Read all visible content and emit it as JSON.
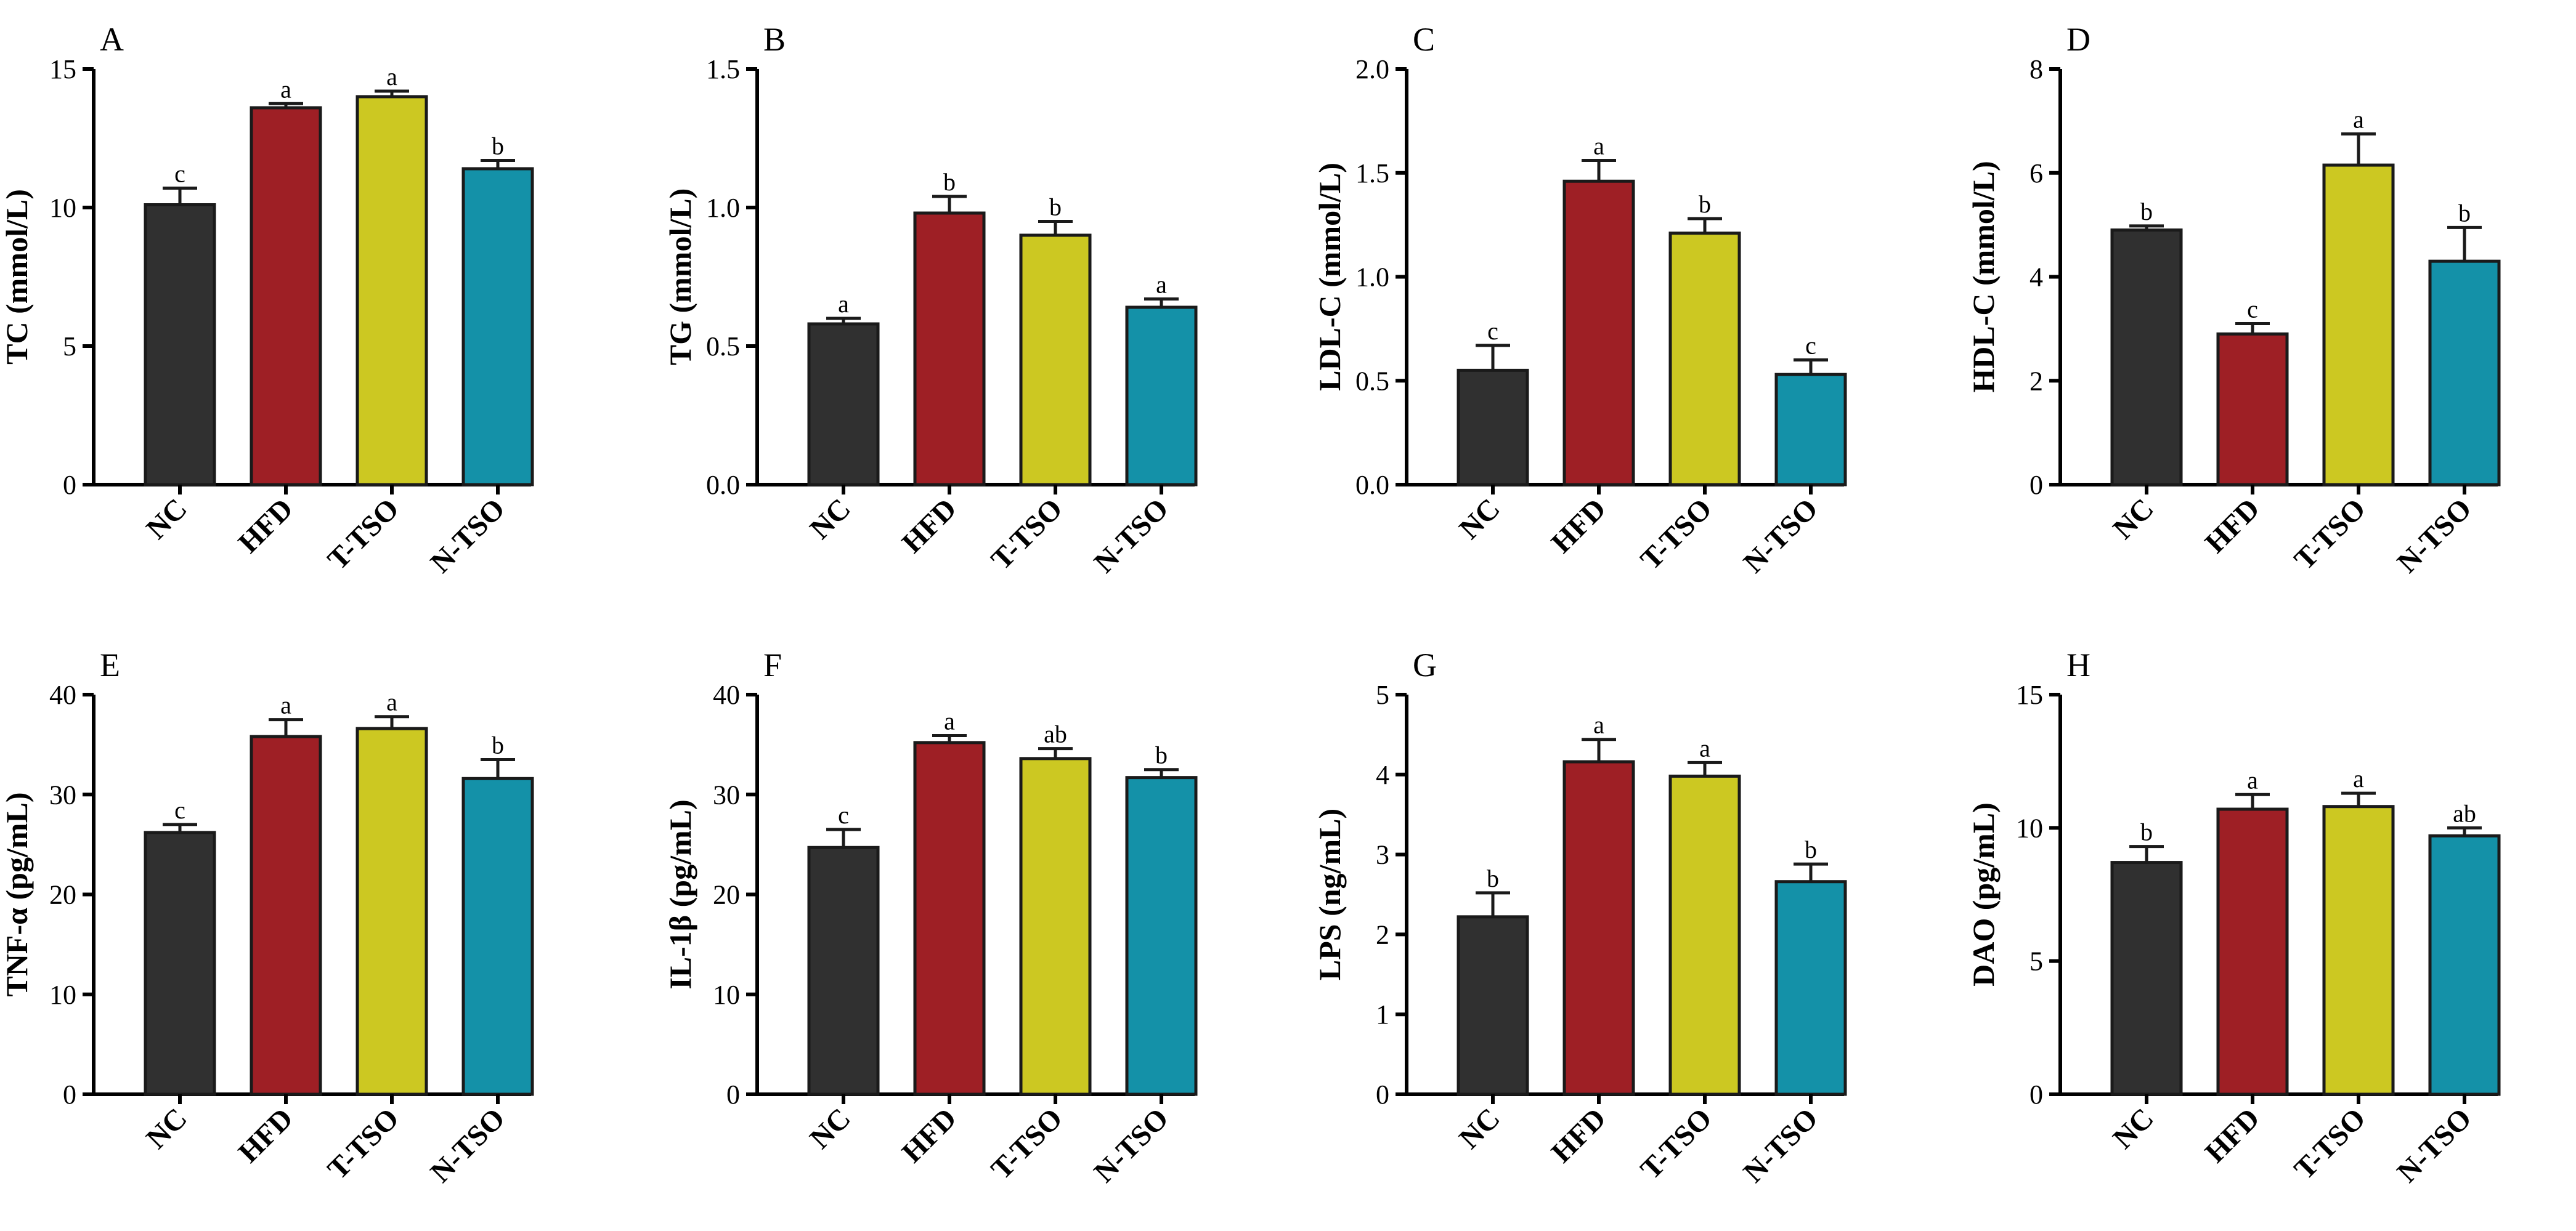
{
  "figure": {
    "description_title": ""
  },
  "colors": {
    "NC": "#303030",
    "HFD": "#9e1f25",
    "T-TSO": "#ccc822",
    "N-TSO": "#1491a8"
  },
  "chart_data": [
    {
      "type": "bar",
      "panel": "A",
      "title": "",
      "xlabel": "",
      "ylabel": "TC (mmol/L)",
      "categories": [
        "NC",
        "HFD",
        "T-TSO",
        "N-TSO"
      ],
      "values": [
        10.1,
        13.6,
        14.0,
        11.4
      ],
      "errors": [
        0.6,
        0.15,
        0.2,
        0.3
      ],
      "letters": [
        "c",
        "a",
        "a",
        "b"
      ],
      "ylim": [
        0,
        15
      ],
      "ticks": [
        0,
        5,
        10,
        15
      ],
      "tick_labels": [
        "0",
        "5",
        "10",
        "15"
      ]
    },
    {
      "type": "bar",
      "panel": "B",
      "title": "",
      "xlabel": "",
      "ylabel": "TG (mmol/L)",
      "categories": [
        "NC",
        "HFD",
        "T-TSO",
        "N-TSO"
      ],
      "values": [
        0.58,
        0.98,
        0.9,
        0.64
      ],
      "errors": [
        0.02,
        0.06,
        0.05,
        0.03
      ],
      "letters": [
        "a",
        "b",
        "b",
        "a"
      ],
      "ylim": [
        0,
        1.5
      ],
      "ticks": [
        0,
        0.5,
        1.0,
        1.5
      ],
      "tick_labels": [
        "0.0",
        "0.5",
        "1.0",
        "1.5"
      ]
    },
    {
      "type": "bar",
      "panel": "C",
      "title": "",
      "xlabel": "",
      "ylabel": "LDL-C (mmol/L)",
      "categories": [
        "NC",
        "HFD",
        "T-TSO",
        "N-TSO"
      ],
      "values": [
        0.55,
        1.46,
        1.21,
        0.53
      ],
      "errors": [
        0.12,
        0.1,
        0.07,
        0.07
      ],
      "letters": [
        "c",
        "a",
        "b",
        "c"
      ],
      "ylim": [
        0,
        2.0
      ],
      "ticks": [
        0,
        0.5,
        1.0,
        1.5,
        2.0
      ],
      "tick_labels": [
        "0.0",
        "0.5",
        "1.0",
        "1.5",
        "2.0"
      ]
    },
    {
      "type": "bar",
      "panel": "D",
      "title": "",
      "xlabel": "",
      "ylabel": "HDL-C (mmol/L)",
      "categories": [
        "NC",
        "HFD",
        "T-TSO",
        "N-TSO"
      ],
      "values": [
        4.9,
        2.9,
        6.15,
        4.3
      ],
      "errors": [
        0.08,
        0.2,
        0.6,
        0.65
      ],
      "letters": [
        "b",
        "c",
        "a",
        "b"
      ],
      "ylim": [
        0,
        8
      ],
      "ticks": [
        0,
        2,
        4,
        6,
        8
      ],
      "tick_labels": [
        "0",
        "2",
        "4",
        "6",
        "8"
      ]
    },
    {
      "type": "bar",
      "panel": "E",
      "title": "",
      "xlabel": "",
      "ylabel": "TNF-α (pg/mL)",
      "categories": [
        "NC",
        "HFD",
        "T-TSO",
        "N-TSO"
      ],
      "values": [
        26.2,
        35.8,
        36.6,
        31.6
      ],
      "errors": [
        0.8,
        1.7,
        1.2,
        1.9
      ],
      "letters": [
        "c",
        "a",
        "a",
        "b"
      ],
      "ylim": [
        0,
        40
      ],
      "ticks": [
        0,
        10,
        20,
        30,
        40
      ],
      "tick_labels": [
        "0",
        "10",
        "20",
        "30",
        "40"
      ]
    },
    {
      "type": "bar",
      "panel": "F",
      "title": "",
      "xlabel": "",
      "ylabel": "IL-1β (pg/mL)",
      "categories": [
        "NC",
        "HFD",
        "T-TSO",
        "N-TSO"
      ],
      "values": [
        24.7,
        35.2,
        33.6,
        31.7
      ],
      "errors": [
        1.8,
        0.7,
        1.0,
        0.8
      ],
      "letters": [
        "c",
        "a",
        "ab",
        "b"
      ],
      "ylim": [
        0,
        40
      ],
      "ticks": [
        0,
        10,
        20,
        30,
        40
      ],
      "tick_labels": [
        "0",
        "10",
        "20",
        "30",
        "40"
      ]
    },
    {
      "type": "bar",
      "panel": "G",
      "title": "",
      "xlabel": "",
      "ylabel": "LPS (ng/mL)",
      "categories": [
        "NC",
        "HFD",
        "T-TSO",
        "N-TSO"
      ],
      "values": [
        2.22,
        4.16,
        3.98,
        2.66
      ],
      "errors": [
        0.3,
        0.28,
        0.17,
        0.22
      ],
      "letters": [
        "b",
        "a",
        "a",
        "b"
      ],
      "ylim": [
        0,
        5
      ],
      "ticks": [
        0,
        1,
        2,
        3,
        4,
        5
      ],
      "tick_labels": [
        "0",
        "1",
        "2",
        "3",
        "4",
        "5"
      ]
    },
    {
      "type": "bar",
      "panel": "H",
      "title": "",
      "xlabel": "",
      "ylabel": "DAO (pg/mL)",
      "categories": [
        "NC",
        "HFD",
        "T-TSO",
        "N-TSO"
      ],
      "values": [
        8.7,
        10.7,
        10.8,
        9.7
      ],
      "errors": [
        0.6,
        0.55,
        0.5,
        0.3
      ],
      "letters": [
        "b",
        "a",
        "a",
        "ab"
      ],
      "ylim": [
        0,
        15
      ],
      "ticks": [
        0,
        5,
        10,
        15
      ],
      "tick_labels": [
        "0",
        "5",
        "10",
        "15"
      ]
    }
  ]
}
